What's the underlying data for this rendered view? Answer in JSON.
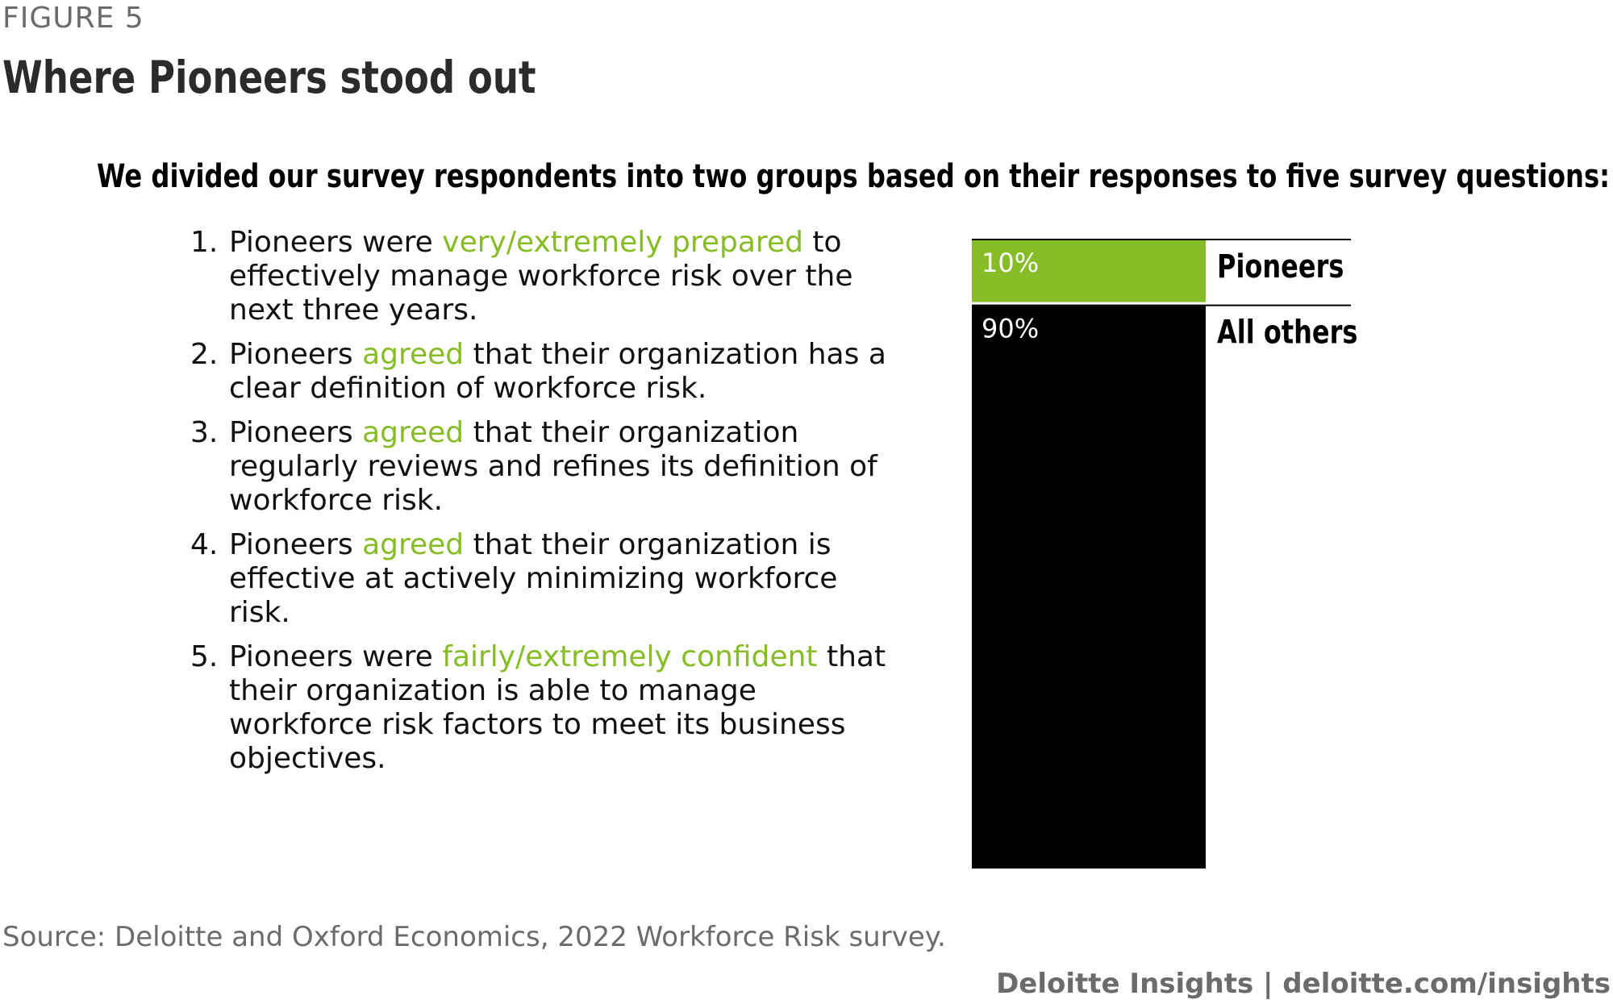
{
  "figure_label": "FIGURE 5",
  "title": "Where Pioneers stood out",
  "intro": "We divided our survey respondents into two groups based on their responses to five survey questions:",
  "questions": [
    {
      "number": "1.",
      "before": "Pioneers were ",
      "highlight": "very/extremely prepared",
      "after": " to effectively manage workforce risk over the next three years."
    },
    {
      "number": "2.",
      "before": "Pioneers ",
      "highlight": "agreed",
      "after": " that their organization has a clear definition of workforce risk."
    },
    {
      "number": "3.",
      "before": "Pioneers ",
      "highlight": "agreed",
      "after": " that their organization regularly reviews and refines its definition of workforce risk."
    },
    {
      "number": "4.",
      "before": "Pioneers ",
      "highlight": "agreed",
      "after": " that their organization is effective at actively minimizing workforce risk."
    },
    {
      "number": "5.",
      "before": "Pioneers were ",
      "highlight": "fairly/extremely confident",
      "after": " that their organization is able to manage workforce risk factors to meet its business objectives."
    }
  ],
  "chart_data": {
    "type": "bar",
    "stacked": true,
    "categories": [
      "Pioneers",
      "All others"
    ],
    "values": [
      10,
      90
    ],
    "value_labels": [
      "10%",
      "90%"
    ],
    "colors": [
      "#86bc25",
      "#000000"
    ]
  },
  "source": "Source: Deloitte and Oxford Economics, 2022 Workforce Risk survey.",
  "brand": "Deloitte Insights | deloitte.com/insights",
  "colors": {
    "accent": "#86bc25",
    "text_muted": "#6b6b6b"
  }
}
